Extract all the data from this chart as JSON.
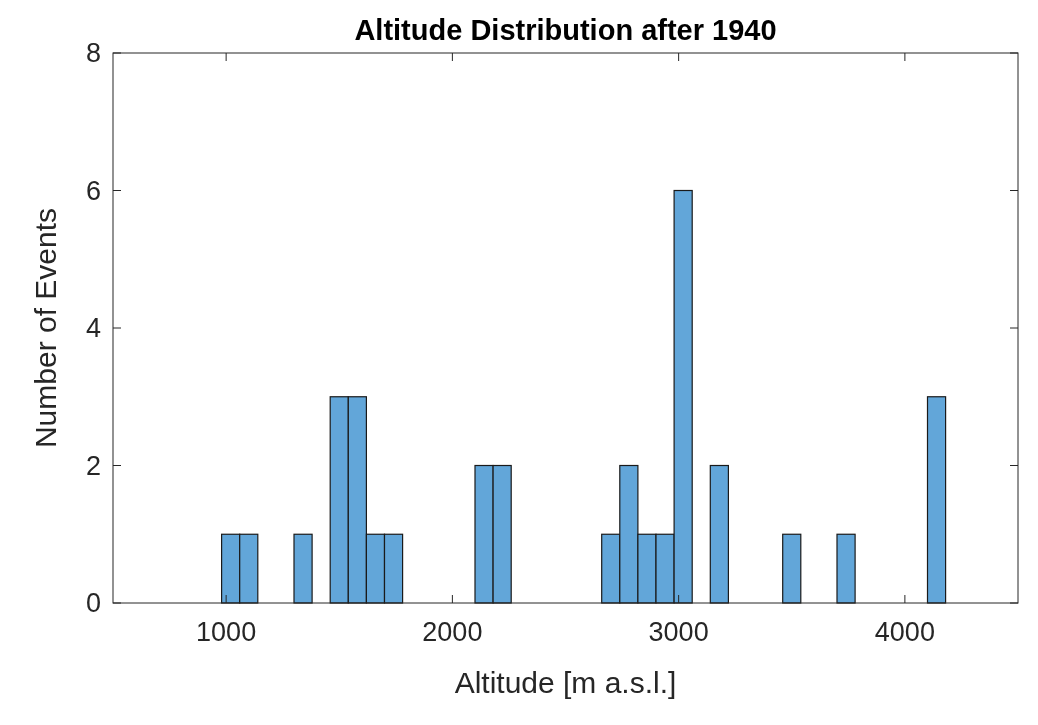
{
  "chart_data": {
    "type": "histogram",
    "title": "Altitude Distribution after 1940",
    "xlabel": "Altitude [m a.s.l.]",
    "ylabel": "Number of Events",
    "bins": [
      980,
      1060,
      1140,
      1220,
      1300,
      1380,
      1460,
      1540,
      1620,
      1700,
      1780,
      1860,
      1940,
      2020,
      2100,
      2180,
      2260,
      2340,
      2420,
      2500,
      2580,
      2660,
      2740,
      2820,
      2900,
      2980,
      3060,
      3140,
      3220,
      3300,
      3380,
      3460,
      3540,
      3620,
      3700,
      3780,
      3860,
      3940,
      4020,
      4100,
      4180
    ],
    "values": [
      1,
      1,
      0,
      0,
      1,
      0,
      3,
      3,
      1,
      1,
      0,
      0,
      0,
      0,
      2,
      2,
      0,
      0,
      0,
      0,
      0,
      1,
      2,
      1,
      1,
      6,
      0,
      2,
      0,
      0,
      0,
      1,
      0,
      0,
      1,
      0,
      0,
      0,
      0,
      3
    ],
    "color": "#62a6d9",
    "xlim": [
      500,
      4500
    ],
    "xticks": [
      1000,
      2000,
      3000,
      4000
    ],
    "ylim": [
      0,
      8
    ],
    "yticks": [
      0,
      2,
      4,
      6,
      8
    ],
    "grid": false
  }
}
